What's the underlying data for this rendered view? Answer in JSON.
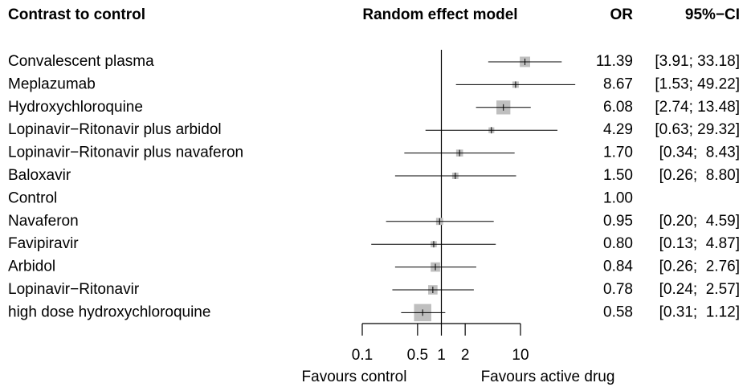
{
  "chart_data": {
    "type": "forest",
    "columns": [
      "Contrast to control",
      "Random effect model",
      "OR",
      "95%−CI"
    ],
    "categories": [
      "Convalescent plasma",
      "Meplazumab",
      "Hydroxychloroquine",
      "Lopinavir−Ritonavir plus arbidol",
      "Lopinavir−Ritonavir plus navaferon",
      "Baloxavir",
      "Control",
      "Navaferon",
      "Favipiravir",
      "Arbidol",
      "Lopinavir−Ritonavir",
      "high dose hydroxychloroquine"
    ],
    "values": [
      11.39,
      8.67,
      6.08,
      4.29,
      1.7,
      1.5,
      1,
      0.95,
      0.8,
      0.84,
      0.78,
      0.58
    ],
    "value_labels": [
      "11.39",
      "8.67",
      "6.08",
      "4.29",
      "1.70",
      "1.50",
      "1.00",
      "0.95",
      "0.80",
      "0.84",
      "0.78",
      "0.58"
    ],
    "lower": [
      3.91,
      1.53,
      2.74,
      0.63,
      0.34,
      0.26,
      null,
      0.2,
      0.13,
      0.26,
      0.24,
      0.31
    ],
    "upper": [
      33.18,
      49.22,
      13.48,
      29.32,
      8.43,
      8.8,
      null,
      4.59,
      4.87,
      2.76,
      2.57,
      1.12
    ],
    "ci_labels": [
      "[3.91; 33.18]",
      "[1.53; 49.22]",
      "[2.74; 13.48]",
      "[0.63; 29.32]",
      "[0.34;  8.43]",
      "[0.26;  8.80]",
      null,
      "[0.20;  4.59]",
      "[0.13;  4.87]",
      "[0.26;  2.76]",
      "[0.24;  2.57]",
      "[0.31;  1.12]"
    ],
    "xlim": [
      0.1,
      10
    ],
    "xticks": [
      0.1,
      0.5,
      1,
      2,
      10
    ],
    "log_x": true,
    "reference": 1,
    "x_labels": [
      "Favours control",
      "Favours active drug"
    ],
    "box_color": "#bfbfbf",
    "line_color": "#000000"
  }
}
